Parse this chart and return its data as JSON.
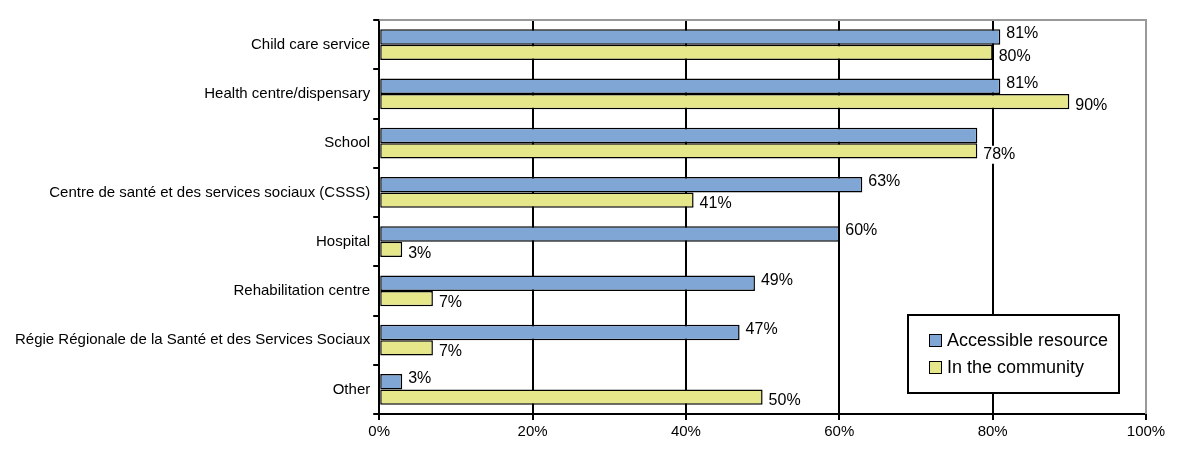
{
  "chart_data": {
    "type": "bar",
    "orientation": "horizontal",
    "categories": [
      "Child care service",
      "Health centre/dispensary",
      "School",
      "Centre de santé et des services sociaux (CSSS)",
      "Hospital",
      "Rehabilitation centre",
      "Régie Régionale de la Santé et des Services Sociaux",
      "Other"
    ],
    "series": [
      {
        "name": "Accessible resource",
        "color": "#7fa6d4",
        "values": [
          81,
          81,
          78,
          63,
          60,
          49,
          47,
          3
        ],
        "value_labels": [
          "81%",
          "81%",
          null,
          "63%",
          "60%",
          "49%",
          "47%",
          "3%"
        ]
      },
      {
        "name": "In the community",
        "color": "#e6e68a",
        "values": [
          80,
          90,
          78,
          41,
          3,
          7,
          7,
          50
        ],
        "value_labels": [
          "80%",
          "90%",
          "78%",
          "41%",
          "3%",
          "7%",
          "7%",
          "50%"
        ]
      }
    ],
    "xlim": [
      0,
      100
    ],
    "xticks": [
      {
        "value": 0,
        "label": "0%"
      },
      {
        "value": 20,
        "label": "20%"
      },
      {
        "value": 40,
        "label": "40%"
      },
      {
        "value": 60,
        "label": "60%"
      },
      {
        "value": 80,
        "label": "80%"
      },
      {
        "value": 100,
        "label": "100%"
      }
    ],
    "grid": "x",
    "legend": "bottom right"
  }
}
